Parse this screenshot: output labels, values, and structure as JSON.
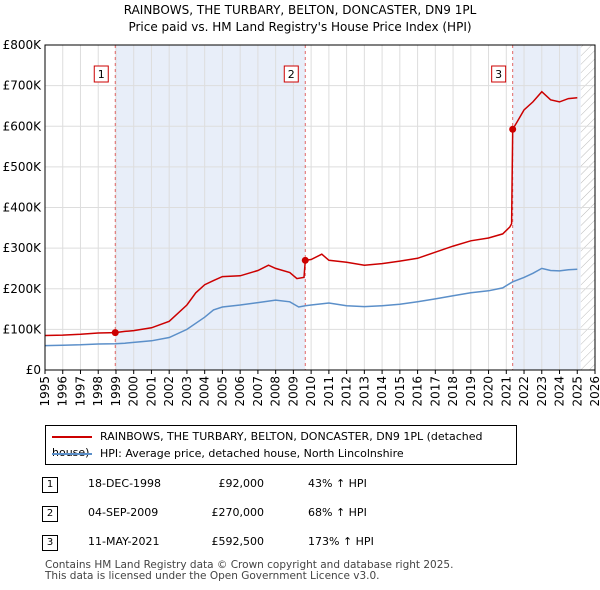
{
  "chart_data": {
    "type": "line",
    "title": "RAINBOWS, THE TURBARY, BELTON, DONCASTER, DN9 1PL",
    "subtitle": "Price paid vs. HM Land Registry's House Price Index (HPI)",
    "xlabel": "",
    "ylabel": "",
    "xlim": [
      1995,
      2026
    ],
    "ylim": [
      0,
      800000
    ],
    "x_ticks": [
      "1995",
      "1996",
      "1997",
      "1998",
      "1999",
      "2000",
      "2001",
      "2002",
      "2003",
      "2004",
      "2005",
      "2006",
      "2007",
      "2008",
      "2009",
      "2010",
      "2011",
      "2012",
      "2013",
      "2014",
      "2015",
      "2016",
      "2017",
      "2018",
      "2019",
      "2020",
      "2021",
      "2022",
      "2023",
      "2024",
      "2025",
      "2026"
    ],
    "y_ticks": [
      {
        "value": 0,
        "label": "£0"
      },
      {
        "value": 100000,
        "label": "£100K"
      },
      {
        "value": 200000,
        "label": "£200K"
      },
      {
        "value": 300000,
        "label": "£300K"
      },
      {
        "value": 400000,
        "label": "£400K"
      },
      {
        "value": 500000,
        "label": "£500K"
      },
      {
        "value": 600000,
        "label": "£600K"
      },
      {
        "value": 700000,
        "label": "£700K"
      },
      {
        "value": 800000,
        "label": "£800K"
      }
    ],
    "shaded_periods": [
      [
        1998.96,
        2009.67
      ],
      [
        2021.36,
        2025.2
      ]
    ],
    "hatched_after": 2025.2,
    "series": [
      {
        "name": "RAINBOWS, THE TURBARY, BELTON, DONCASTER, DN9 1PL (detached house)",
        "color": "#cc0000",
        "points": [
          [
            1995,
            85000
          ],
          [
            1996,
            86000
          ],
          [
            1997,
            88000
          ],
          [
            1998,
            91000
          ],
          [
            1998.96,
            92000
          ],
          [
            1999.5,
            95000
          ],
          [
            2000,
            97000
          ],
          [
            2001,
            104000
          ],
          [
            2002,
            120000
          ],
          [
            2003,
            160000
          ],
          [
            2003.5,
            190000
          ],
          [
            2004,
            210000
          ],
          [
            2004.5,
            220000
          ],
          [
            2005,
            230000
          ],
          [
            2006,
            232000
          ],
          [
            2007,
            245000
          ],
          [
            2007.6,
            258000
          ],
          [
            2008,
            250000
          ],
          [
            2008.8,
            240000
          ],
          [
            2009.2,
            225000
          ],
          [
            2009.6,
            228000
          ],
          [
            2009.67,
            270000
          ],
          [
            2010,
            272000
          ],
          [
            2010.6,
            285000
          ],
          [
            2011,
            270000
          ],
          [
            2012,
            265000
          ],
          [
            2013,
            258000
          ],
          [
            2014,
            262000
          ],
          [
            2015,
            268000
          ],
          [
            2016,
            275000
          ],
          [
            2017,
            290000
          ],
          [
            2018,
            305000
          ],
          [
            2019,
            318000
          ],
          [
            2020,
            325000
          ],
          [
            2020.8,
            335000
          ],
          [
            2021.2,
            352000
          ],
          [
            2021.3,
            360000
          ],
          [
            2021.36,
            592500
          ],
          [
            2021.6,
            610000
          ],
          [
            2022,
            640000
          ],
          [
            2022.5,
            660000
          ],
          [
            2023,
            685000
          ],
          [
            2023.5,
            665000
          ],
          [
            2024,
            660000
          ],
          [
            2024.5,
            668000
          ],
          [
            2025,
            670000
          ]
        ]
      },
      {
        "name": "HPI: Average price, detached house, North Lincolnshire",
        "color": "#5b8fc9",
        "points": [
          [
            1995,
            60000
          ],
          [
            1996,
            61000
          ],
          [
            1997,
            62000
          ],
          [
            1998,
            64000
          ],
          [
            1998.96,
            64500
          ],
          [
            1999.5,
            66000
          ],
          [
            2000,
            68000
          ],
          [
            2001,
            72000
          ],
          [
            2002,
            80000
          ],
          [
            2003,
            100000
          ],
          [
            2004,
            130000
          ],
          [
            2004.5,
            148000
          ],
          [
            2005,
            155000
          ],
          [
            2006,
            160000
          ],
          [
            2007,
            166000
          ],
          [
            2008,
            172000
          ],
          [
            2008.8,
            168000
          ],
          [
            2009.3,
            155000
          ],
          [
            2009.67,
            158000
          ],
          [
            2010,
            160000
          ],
          [
            2011,
            165000
          ],
          [
            2012,
            158000
          ],
          [
            2013,
            156000
          ],
          [
            2014,
            158000
          ],
          [
            2015,
            162000
          ],
          [
            2016,
            168000
          ],
          [
            2017,
            175000
          ],
          [
            2018,
            183000
          ],
          [
            2019,
            190000
          ],
          [
            2020,
            195000
          ],
          [
            2020.8,
            202000
          ],
          [
            2021.36,
            217000
          ],
          [
            2022,
            228000
          ],
          [
            2022.5,
            238000
          ],
          [
            2023,
            250000
          ],
          [
            2023.5,
            245000
          ],
          [
            2024,
            244000
          ],
          [
            2024.5,
            247000
          ],
          [
            2025,
            248000
          ]
        ]
      }
    ],
    "annotations": [
      {
        "label": "1",
        "x": 1998.96,
        "y": 92000
      },
      {
        "label": "2",
        "x": 2009.67,
        "y": 270000
      },
      {
        "label": "3",
        "x": 2021.36,
        "y": 592500
      }
    ]
  },
  "legend": {
    "sold_label": "RAINBOWS, THE TURBARY, BELTON, DONCASTER, DN9 1PL (detached house)",
    "hpi_label": "HPI: Average price, detached house, North Lincolnshire",
    "sold_color": "#cc0000",
    "hpi_color": "#5b8fc9"
  },
  "sales": [
    {
      "num": "1",
      "date": "18-DEC-1998",
      "price": "£92,000",
      "hpi": "43% ↑ HPI"
    },
    {
      "num": "2",
      "date": "04-SEP-2009",
      "price": "£270,000",
      "hpi": "68% ↑ HPI"
    },
    {
      "num": "3",
      "date": "11-MAY-2021",
      "price": "£592,500",
      "hpi": "173% ↑ HPI"
    }
  ],
  "footer": {
    "line1": "Contains HM Land Registry data © Crown copyright and database right 2025.",
    "line2": "This data is licensed under the Open Government Licence v3.0."
  }
}
